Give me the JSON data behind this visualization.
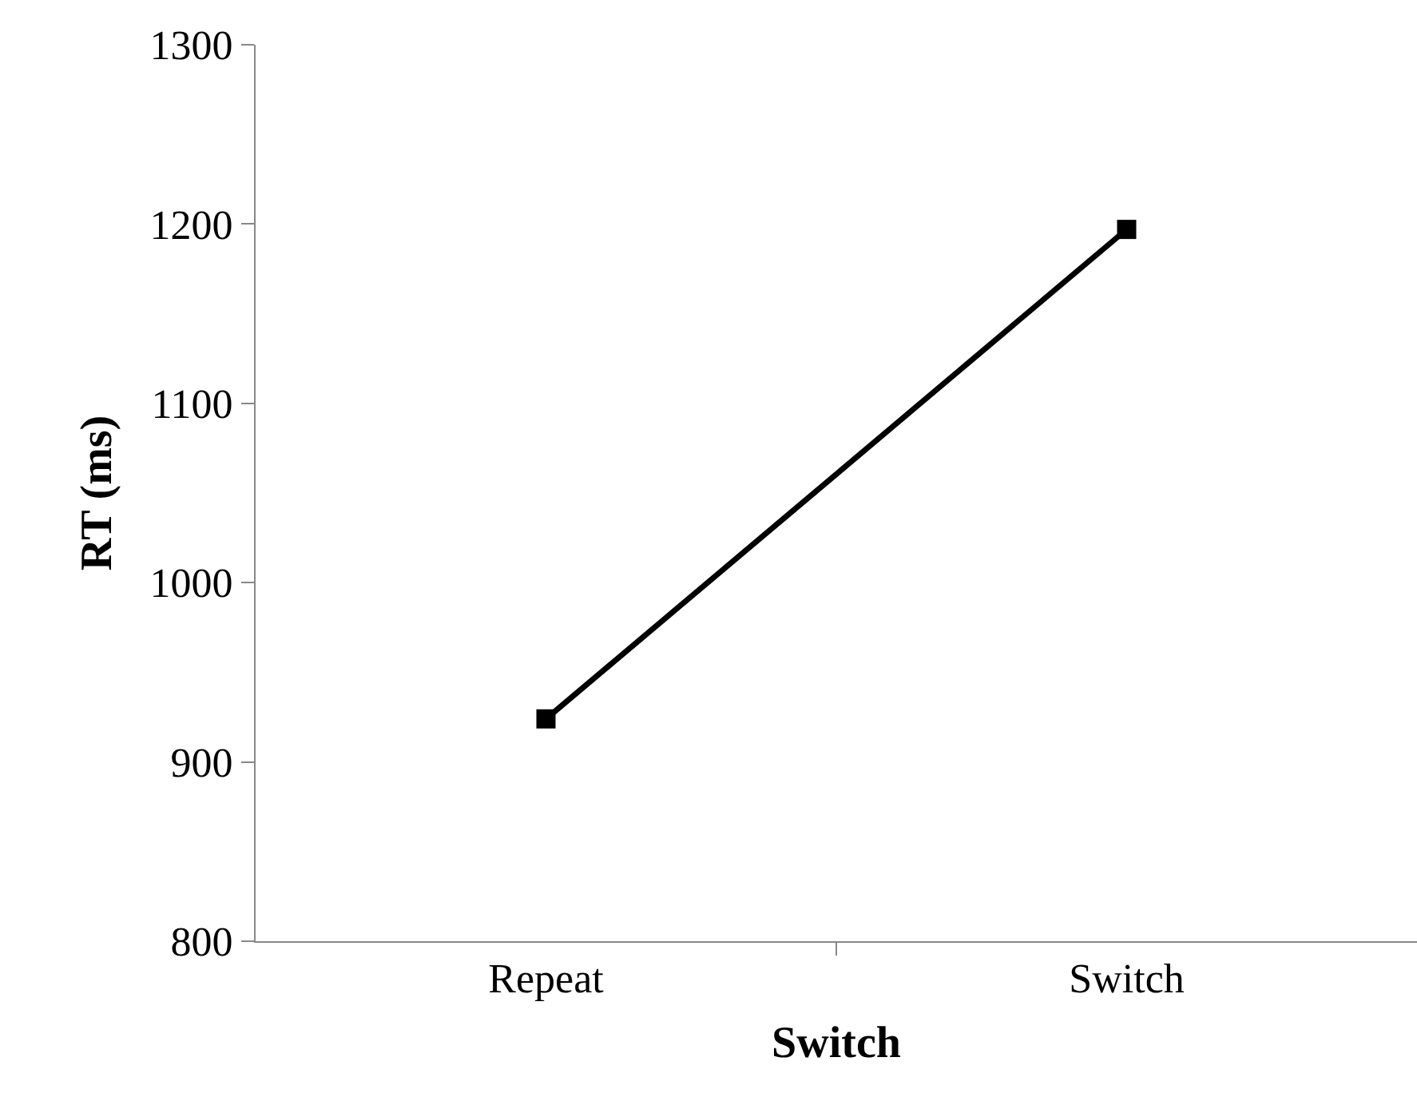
{
  "chart_data": {
    "type": "line",
    "xlabel": "Switch",
    "ylabel": "RT (ms)",
    "categories": [
      "Repeat",
      "Switch"
    ],
    "series": [
      {
        "color": "#000000",
        "values": [
          924,
          1197
        ]
      }
    ],
    "ylim": [
      800,
      1300
    ],
    "yticks": [
      800,
      900,
      1000,
      1100,
      1200,
      1300
    ],
    "marker": "square",
    "line_style": "solid"
  }
}
